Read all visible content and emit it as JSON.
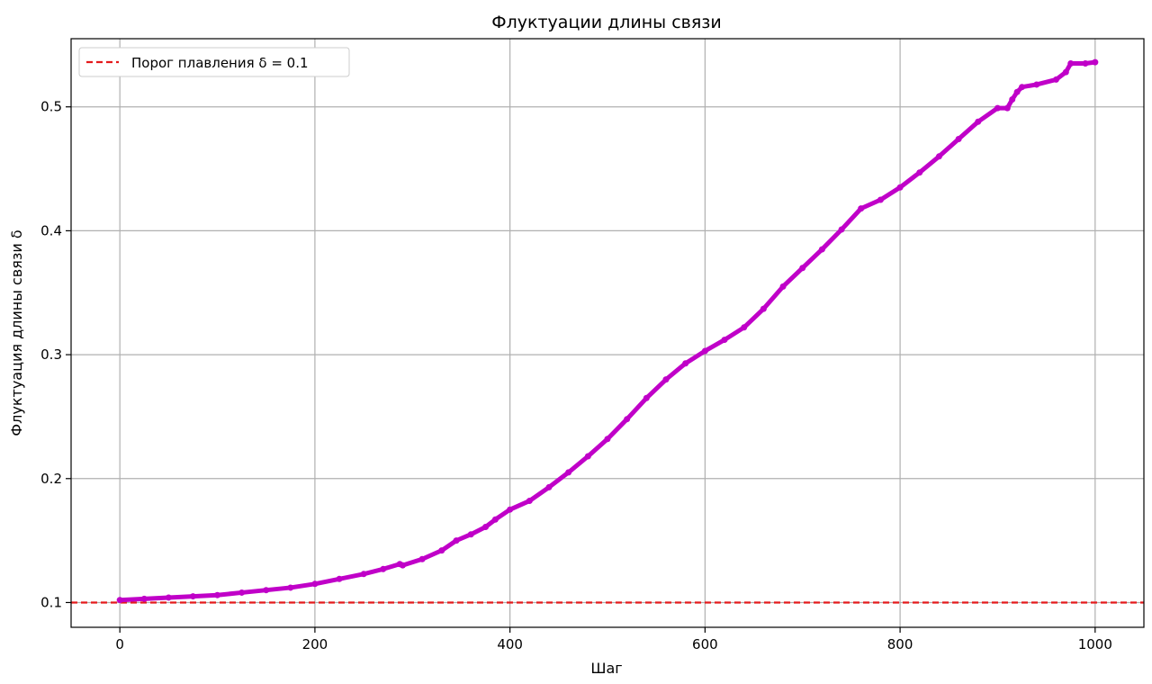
{
  "chart_data": {
    "type": "line",
    "title": "Флуктуации длины связи",
    "xlabel": "Шаг",
    "ylabel": "Флуктуация длины связи δ",
    "xlim": [
      -50,
      1050
    ],
    "ylim": [
      0.08,
      0.555
    ],
    "xticks": [
      0,
      200,
      400,
      600,
      800,
      1000
    ],
    "yticks": [
      0.1,
      0.2,
      0.3,
      0.4,
      0.5
    ],
    "grid": true,
    "legend_position": "top-left",
    "series": [
      {
        "kind": "line-with-markers",
        "color": "#c000c8",
        "x": [
          0,
          25,
          50,
          75,
          100,
          125,
          150,
          175,
          200,
          225,
          250,
          270,
          287,
          290,
          310,
          330,
          345,
          360,
          375,
          385,
          400,
          420,
          440,
          460,
          480,
          500,
          520,
          540,
          560,
          580,
          600,
          620,
          640,
          660,
          680,
          700,
          720,
          740,
          760,
          780,
          800,
          820,
          840,
          860,
          880,
          900,
          910,
          915,
          920,
          925,
          940,
          960,
          970,
          975,
          990,
          1000
        ],
        "y": [
          0.102,
          0.103,
          0.104,
          0.105,
          0.106,
          0.108,
          0.11,
          0.112,
          0.115,
          0.119,
          0.123,
          0.127,
          0.131,
          0.13,
          0.135,
          0.142,
          0.15,
          0.155,
          0.161,
          0.167,
          0.175,
          0.182,
          0.193,
          0.205,
          0.218,
          0.232,
          0.248,
          0.265,
          0.28,
          0.293,
          0.303,
          0.312,
          0.322,
          0.337,
          0.355,
          0.37,
          0.385,
          0.401,
          0.418,
          0.425,
          0.435,
          0.447,
          0.46,
          0.474,
          0.488,
          0.499,
          0.499,
          0.506,
          0.512,
          0.516,
          0.518,
          0.522,
          0.528,
          0.535,
          0.535,
          0.536
        ]
      },
      {
        "name": "Порог плавления δ = 0.1",
        "kind": "hline",
        "color": "#e41a1c",
        "y": 0.1
      }
    ]
  }
}
